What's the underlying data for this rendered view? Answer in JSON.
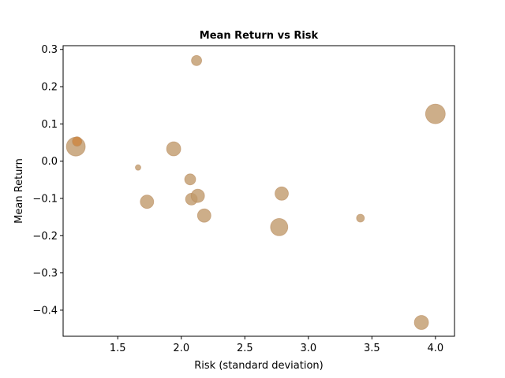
{
  "chart_data": {
    "type": "scatter",
    "title": "Mean Return vs Risk",
    "xlabel": "Risk (standard deviation)",
    "ylabel": "Mean Return",
    "xlim": [
      1.07,
      4.15
    ],
    "ylim": [
      -0.47,
      0.31
    ],
    "xticks": [
      1.5,
      2.0,
      2.5,
      3.0,
      3.5,
      4.0
    ],
    "xtick_labels": [
      "1.5",
      "2.0",
      "2.5",
      "3.0",
      "3.5",
      "4.0"
    ],
    "yticks": [
      -0.4,
      -0.3,
      -0.2,
      -0.1,
      0.0,
      0.1,
      0.2,
      0.3
    ],
    "ytick_labels": [
      "−0.4",
      "−0.3",
      "−0.2",
      "−0.1",
      "0.0",
      "0.1",
      "0.2",
      "0.3"
    ],
    "grid": false,
    "colors": {
      "marker": "#c19a6b",
      "marker_highlight": "#cd853f",
      "marker_edge": "#b8895a"
    },
    "points": [
      {
        "x": 1.17,
        "y": 0.039,
        "size": 12
      },
      {
        "x": 1.18,
        "y": 0.053,
        "size": 6
      },
      {
        "x": 1.66,
        "y": -0.017,
        "size": 3.5
      },
      {
        "x": 1.73,
        "y": -0.109,
        "size": 8.5
      },
      {
        "x": 1.94,
        "y": 0.033,
        "size": 9
      },
      {
        "x": 2.07,
        "y": -0.049,
        "size": 7
      },
      {
        "x": 2.08,
        "y": -0.102,
        "size": 7.5
      },
      {
        "x": 2.12,
        "y": 0.27,
        "size": 6.5
      },
      {
        "x": 2.13,
        "y": -0.093,
        "size": 8.5
      },
      {
        "x": 2.18,
        "y": -0.146,
        "size": 8.5
      },
      {
        "x": 2.77,
        "y": -0.177,
        "size": 11
      },
      {
        "x": 2.79,
        "y": -0.087,
        "size": 8.5
      },
      {
        "x": 3.41,
        "y": -0.153,
        "size": 5
      },
      {
        "x": 3.89,
        "y": -0.433,
        "size": 9
      },
      {
        "x": 4.0,
        "y": 0.127,
        "size": 12.5
      }
    ]
  }
}
